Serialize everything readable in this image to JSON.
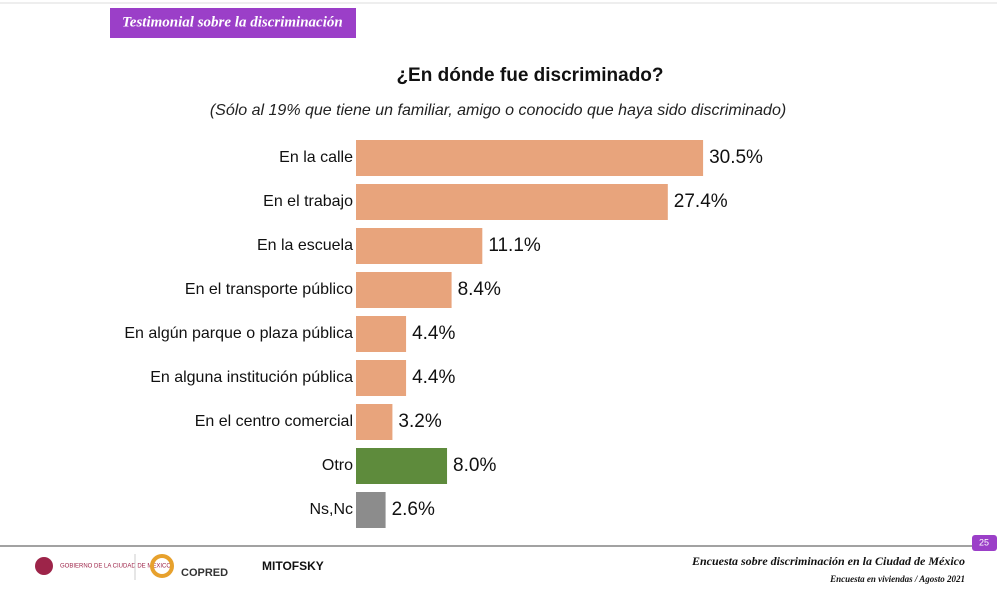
{
  "header": {
    "banner": "Testimonial sobre la discriminación"
  },
  "chart_data": {
    "type": "bar",
    "orientation": "horizontal",
    "title": "¿En dónde fue discriminado?",
    "subtitle": "(Sólo al 19% que tiene un familiar, amigo o conocido que haya sido discriminado)",
    "categories": [
      "En la calle",
      "En el trabajo",
      "En la escuela",
      "En el transporte público",
      "En algún parque o plaza pública",
      "En alguna institución pública",
      "En el centro comercial",
      "Otro",
      "Ns,Nc"
    ],
    "values": [
      30.5,
      27.4,
      11.1,
      8.4,
      4.4,
      4.4,
      3.2,
      8.0,
      2.6
    ],
    "value_labels": [
      "30.5%",
      "27.4%",
      "11.1%",
      "8.4%",
      "4.4%",
      "4.4%",
      "3.2%",
      "8.0%",
      "2.6%"
    ],
    "colors": [
      "#e8a47c",
      "#e8a47c",
      "#e8a47c",
      "#e8a47c",
      "#e8a47c",
      "#e8a47c",
      "#e8a47c",
      "#5e8b3c",
      "#8c8c8c"
    ]
  },
  "footer": {
    "logo_gov": "GOBIERNO DE LA CIUDAD DE MÉXICO",
    "logo_copred": "COPRED",
    "logo_mitofsky": "MITOFSKY",
    "survey": "Encuesta sobre discriminación en la Ciudad de México",
    "note": "Encuesta en viviendas / Agosto 2021",
    "page": "25"
  }
}
